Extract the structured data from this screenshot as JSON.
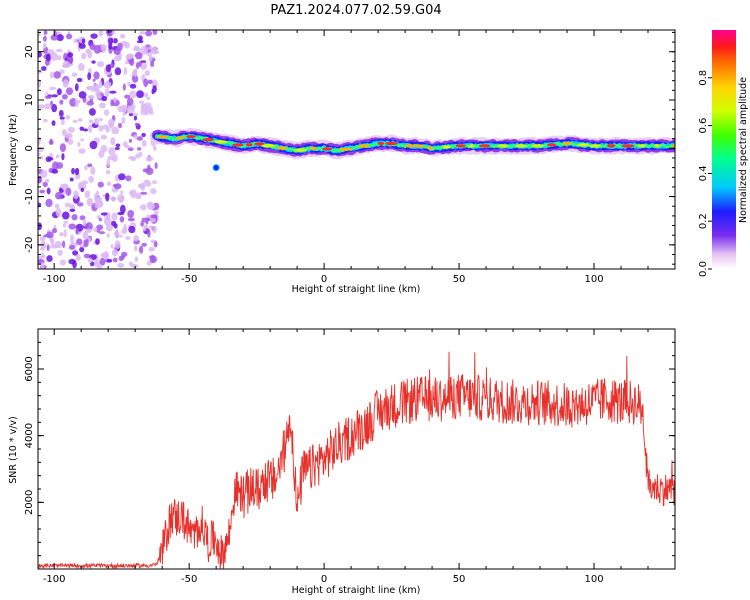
{
  "title": "PAZ1.2024.077.02.59.G04",
  "colors": {
    "snr_line": "#e8302a",
    "scatter_purple": "#8a2be2",
    "axis": "#000000",
    "background": "#ffffff"
  },
  "chart_data": [
    {
      "type": "heatmap",
      "xlabel": "Height of straight line (km)",
      "ylabel": "Frequency (Hz)",
      "xlim": [
        -106,
        130
      ],
      "ylim": [
        -25,
        24.5
      ],
      "x_ticks": [
        "-100",
        "-50",
        "0",
        "50",
        "100"
      ],
      "y_ticks": [
        "-20",
        "-10",
        "0",
        "10",
        "20"
      ],
      "x_tick_values": [
        -100,
        -50,
        0,
        50,
        100
      ],
      "y_tick_values": [
        -20,
        -10,
        0,
        10,
        20
      ],
      "noise_region_x": [
        -106,
        -62
      ],
      "signal_start_x": -62,
      "signal_ridge": [
        {
          "x": -62,
          "f": 2.5
        },
        {
          "x": -55,
          "f": 2.0
        },
        {
          "x": -50,
          "f": 2.5
        },
        {
          "x": -45,
          "f": 2.0
        },
        {
          "x": -40,
          "f": 1.5
        },
        {
          "x": -35,
          "f": 1.0
        },
        {
          "x": -30,
          "f": 0.5
        },
        {
          "x": -25,
          "f": 1.0
        },
        {
          "x": -20,
          "f": 0.5
        },
        {
          "x": -15,
          "f": 0.0
        },
        {
          "x": -10,
          "f": -0.5
        },
        {
          "x": -5,
          "f": 0.0
        },
        {
          "x": 0,
          "f": 0.0
        },
        {
          "x": 5,
          "f": -0.5
        },
        {
          "x": 10,
          "f": 0.0
        },
        {
          "x": 15,
          "f": 0.5
        },
        {
          "x": 20,
          "f": 1.0
        },
        {
          "x": 25,
          "f": 1.0
        },
        {
          "x": 30,
          "f": 0.5
        },
        {
          "x": 35,
          "f": 0.5
        },
        {
          "x": 40,
          "f": 0.0
        },
        {
          "x": 50,
          "f": 0.5
        },
        {
          "x": 60,
          "f": 0.5
        },
        {
          "x": 70,
          "f": 0.5
        },
        {
          "x": 80,
          "f": 0.5
        },
        {
          "x": 90,
          "f": 1.0
        },
        {
          "x": 100,
          "f": 0.5
        },
        {
          "x": 110,
          "f": 0.5
        },
        {
          "x": 120,
          "f": 0.5
        },
        {
          "x": 130,
          "f": 0.5
        }
      ],
      "colorbar": {
        "label": "Normalized spectral amplitude",
        "range": [
          0,
          1
        ],
        "ticks": [
          "0.0",
          "0.2",
          "0.4",
          "0.6",
          "0.8"
        ],
        "tick_values": [
          0.0,
          0.2,
          0.4,
          0.6,
          0.8
        ]
      }
    },
    {
      "type": "line",
      "xlabel": "Height of straight line (km)",
      "ylabel": "SNR (10 * v/v)",
      "xlim": [
        -106,
        130
      ],
      "ylim": [
        0,
        7200
      ],
      "x_ticks": [
        "-100",
        "-50",
        "0",
        "50",
        "100"
      ],
      "y_ticks": [
        "2000",
        "4000",
        "6000"
      ],
      "x_tick_values": [
        -100,
        -50,
        0,
        50,
        100
      ],
      "y_tick_values": [
        2000,
        4000,
        6000
      ],
      "series": [
        {
          "x": [
            -106,
            -90,
            -75,
            -65,
            -62,
            -60,
            -58,
            -56,
            -55,
            -53,
            -50,
            -48,
            -46,
            -45,
            -43,
            -40,
            -38,
            -36,
            -35,
            -33,
            -30,
            -28,
            -26,
            -25,
            -22,
            -20,
            -18,
            -16,
            -14,
            -13,
            -12,
            -11,
            -10,
            -8,
            -5,
            -2,
            0,
            5,
            10,
            15,
            20,
            25,
            30,
            35,
            40,
            45,
            50,
            60,
            70,
            80,
            90,
            100,
            105,
            110,
            115,
            118,
            120,
            125,
            130
          ],
          "y": [
            100,
            100,
            100,
            100,
            150,
            500,
            1200,
            1700,
            1500,
            1600,
            1200,
            900,
            1400,
            1300,
            800,
            900,
            400,
            800,
            1100,
            2400,
            2200,
            2300,
            2500,
            2300,
            2700,
            2600,
            2700,
            3200,
            3800,
            4500,
            4200,
            3000,
            1700,
            2900,
            3000,
            3200,
            3300,
            3700,
            4000,
            4300,
            4700,
            4900,
            5000,
            5100,
            5100,
            5100,
            5200,
            5100,
            5000,
            5000,
            4900,
            5000,
            5100,
            5000,
            5000,
            4800,
            2500,
            2400,
            2400
          ]
        }
      ]
    }
  ]
}
